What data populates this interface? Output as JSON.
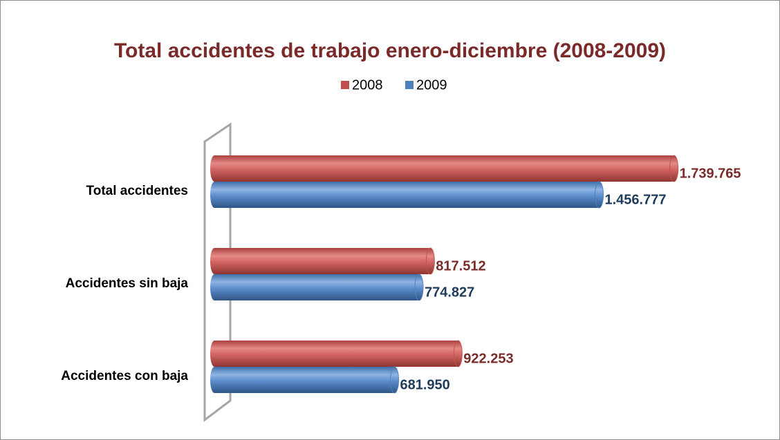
{
  "chart_data": {
    "type": "bar",
    "orientation": "horizontal",
    "title": "Total accidentes de trabajo enero-diciembre (2008-2009)",
    "categories": [
      "Total accidentes",
      "Accidentes sin baja",
      "Accidentes con baja"
    ],
    "series": [
      {
        "name": "2008",
        "color": "#c0504d",
        "label_color": "#7b2c2a",
        "values": [
          1739765,
          817512,
          922253
        ],
        "value_labels": [
          "1.739.765",
          "817.512",
          "922.253"
        ]
      },
      {
        "name": "2009",
        "color": "#4f81bd",
        "label_color": "#1f3b5c",
        "values": [
          1456777,
          774827,
          681950
        ],
        "value_labels": [
          "1.456.777",
          "774.827",
          "681.950"
        ]
      }
    ],
    "xlim": [
      0,
      2000000
    ],
    "legend": "top"
  }
}
